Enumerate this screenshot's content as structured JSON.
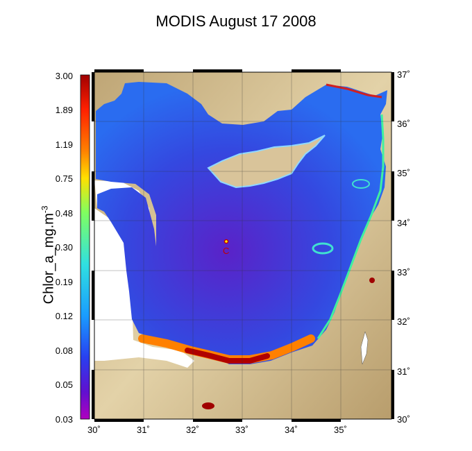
{
  "title": "MODIS August 17 2008",
  "colorbar": {
    "label": "Chlor_a_mg.m",
    "label_exponent": "-3",
    "ticks": [
      "3.00",
      "1.89",
      "1.19",
      "0.75",
      "0.48",
      "0.30",
      "0.19",
      "0.12",
      "0.08",
      "0.05",
      "0.03"
    ],
    "colors": [
      "#c00000",
      "#ff3000",
      "#ff8000",
      "#ffd000",
      "#ffff00",
      "#80ff80",
      "#40e0d0",
      "#20a0ff",
      "#2060ff",
      "#4020e0",
      "#8000c0",
      "#b000d0"
    ]
  },
  "map": {
    "lon_ticks": [
      "30˚",
      "31˚",
      "32˚",
      "33˚",
      "34˚",
      "35˚"
    ],
    "lat_ticks": [
      "37˚",
      "36˚",
      "35˚",
      "34˚",
      "33˚",
      "32˚",
      "31˚",
      "30˚"
    ],
    "station_label": "C",
    "colors": {
      "sea": "#3d5ce8",
      "land": "#d9c49a",
      "nodata": "#ffffff",
      "coastal_high": "#c01010"
    }
  }
}
